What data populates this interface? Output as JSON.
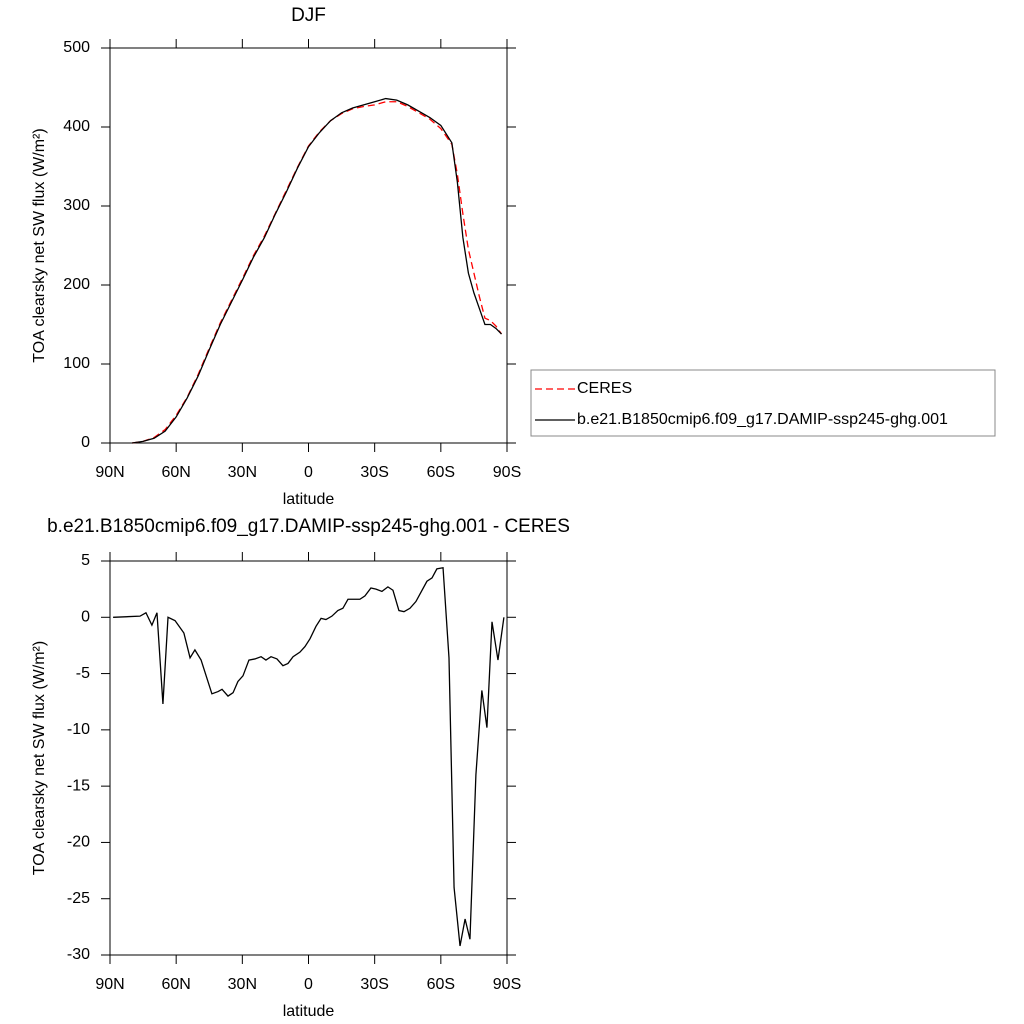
{
  "chart_data": [
    {
      "type": "line",
      "title": "DJF",
      "xlabel": "latitude",
      "ylabel": "TOA clearsky net SW flux (W/m²)",
      "xlim": [
        90,
        -90
      ],
      "xticks": [
        {
          "value": 90,
          "label": "90N"
        },
        {
          "value": 60,
          "label": "60N"
        },
        {
          "value": 30,
          "label": "30N"
        },
        0,
        {
          "value": -30,
          "label": "30S"
        },
        {
          "value": -60,
          "label": "60S"
        },
        {
          "value": -90,
          "label": "90S"
        }
      ],
      "ylim": [
        0,
        500
      ],
      "yticks": [
        0,
        100,
        200,
        300,
        400,
        500
      ],
      "legend": "outside-right",
      "x": [
        80,
        75,
        70,
        65,
        60,
        55,
        50,
        45,
        40,
        35,
        30,
        25,
        20,
        15,
        10,
        5,
        0,
        -5,
        -10,
        -15,
        -20,
        -25,
        -30,
        -35,
        -40,
        -45,
        -50,
        -55,
        -60,
        -65,
        -67.5,
        -70,
        -72.5,
        -75,
        -77.5,
        -80,
        -82.5,
        -85,
        -87.5
      ],
      "series": [
        {
          "name": "CERES",
          "color": "#ff0000",
          "dashed": true,
          "values": [
            0,
            2,
            7,
            17,
            35,
            58,
            87,
            120,
            152,
            180,
            208,
            237,
            262,
            291,
            320,
            349,
            376,
            394,
            408,
            417,
            423,
            426,
            428,
            432,
            432,
            426,
            418,
            410,
            398,
            378,
            340,
            290,
            245,
            215,
            185,
            158,
            155,
            148,
            138
          ]
        },
        {
          "name": "b.e21.B1850cmip6.f09_g17.DAMIP-ssp245-ghg.001",
          "color": "#000000",
          "dashed": false,
          "values": [
            0,
            2,
            6,
            15,
            33,
            57,
            85,
            118,
            150,
            178,
            206,
            235,
            260,
            290,
            318,
            348,
            375,
            393,
            408,
            418,
            424,
            428,
            432,
            436,
            434,
            428,
            420,
            412,
            402,
            380,
            330,
            260,
            215,
            190,
            170,
            150,
            150,
            145,
            138
          ]
        }
      ]
    },
    {
      "type": "line",
      "title": "b.e21.B1850cmip6.f09_g17.DAMIP-ssp245-ghg.001 - CERES",
      "xlabel": "latitude",
      "ylabel": "TOA clearsky net SW flux (W/m²)",
      "xlim": [
        90,
        -90
      ],
      "xticks": [
        {
          "value": 90,
          "label": "90N"
        },
        {
          "value": 60,
          "label": "60N"
        },
        {
          "value": 30,
          "label": "30N"
        },
        0,
        {
          "value": -30,
          "label": "30S"
        },
        {
          "value": -60,
          "label": "60S"
        },
        {
          "value": -90,
          "label": "90S"
        }
      ],
      "ylim": [
        -30,
        5
      ],
      "yticks": [
        5,
        0,
        -5,
        -10,
        -15,
        -20,
        -25,
        -30
      ],
      "color": "#000000",
      "x": [
        88.6,
        76.4,
        73.7,
        71,
        68.7,
        66,
        63.7,
        60.5,
        56.5,
        53.7,
        51.5,
        48.7,
        43.8,
        41,
        39.2,
        36.5,
        34.2,
        32,
        29.7,
        27,
        24.3,
        21.5,
        19.3,
        17,
        14.3,
        11.6,
        9.3,
        7,
        3.9,
        1.6,
        -0.7,
        -3.4,
        -5.7,
        -7.9,
        -10.6,
        -13.3,
        -15.6,
        -17.9,
        -23.3,
        -25.6,
        -28.3,
        -30.6,
        -33.3,
        -36,
        -38.3,
        -41,
        -43.3,
        -46,
        -48.7,
        -53.7,
        -56,
        -58.2,
        -61,
        -63.7,
        -66,
        -68.7,
        -71,
        -73.2,
        -75.9,
        -78.6,
        -80.9,
        -83.2,
        -85.9,
        -88.6
      ],
      "values": [
        0,
        0.1,
        0.4,
        -0.7,
        0.4,
        -7.7,
        0,
        -0.3,
        -1.4,
        -3.6,
        -2.9,
        -3.8,
        -6.8,
        -6.6,
        -6.4,
        -7,
        -6.7,
        -5.7,
        -5.2,
        -3.8,
        -3.7,
        -3.5,
        -3.8,
        -3.5,
        -3.7,
        -4.3,
        -4.1,
        -3.5,
        -3.1,
        -2.6,
        -1.9,
        -0.8,
        -0.1,
        -0.2,
        0.1,
        0.6,
        0.8,
        1.6,
        1.6,
        1.9,
        2.6,
        2.5,
        2.3,
        2.7,
        2.4,
        0.6,
        0.5,
        0.8,
        1.4,
        3.2,
        3.5,
        4.3,
        4.4,
        -3.6,
        -24,
        -29.2,
        -26.8,
        -28.6,
        -14,
        -6.5,
        -9.8,
        -0.4,
        -3.8,
        0
      ]
    }
  ]
}
